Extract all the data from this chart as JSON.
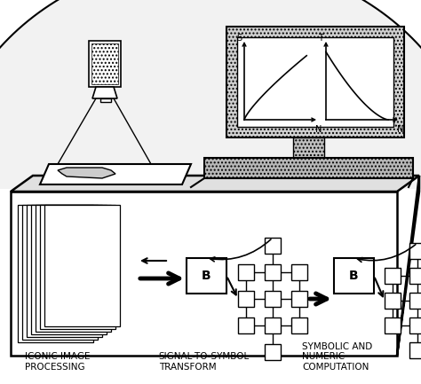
{
  "figure_width": 4.74,
  "figure_height": 4.33,
  "dpi": 100,
  "bg_color": "#ffffff",
  "label1": "ICONIC IMAGE\nPROCESSING",
  "label2": "SIGNAL-TO-SYMBOL\nTRANSFORM",
  "label3": "SYMBOLIC AND\nNUMERIC\nCOMPUTATION"
}
